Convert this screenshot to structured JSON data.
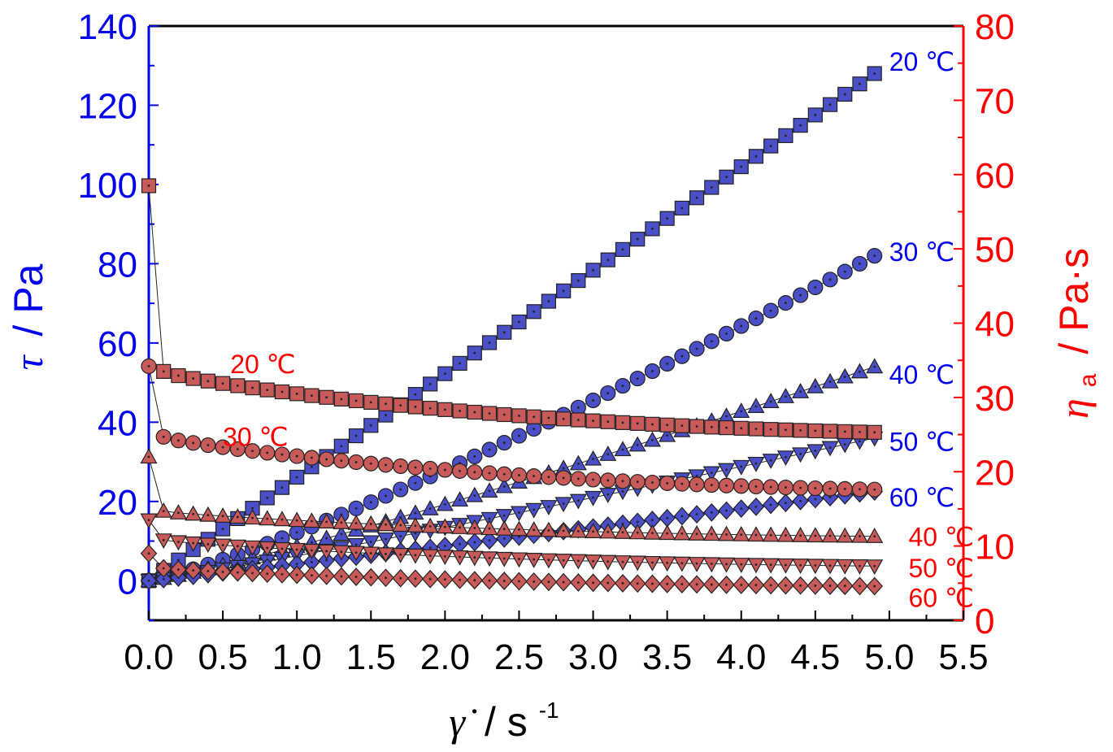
{
  "colors": {
    "left_axis": "#0000ee",
    "right_axis": "#ff0000",
    "blue_fill": "#4a4fc8",
    "red_fill": "#c85a5a",
    "x_axis": "#000000"
  },
  "chart_data": {
    "type": "scatter",
    "title": "",
    "xlabel": {
      "symbol": "γ̇",
      "unit": "/ s",
      "exponent": "-1"
    },
    "ylabel_left": {
      "symbol": "τ",
      "unit": "/ Pa"
    },
    "ylabel_right": {
      "symbol": "η",
      "subscript": "a",
      "unit": "/ Pa·s"
    },
    "xlim": [
      0,
      5.5
    ],
    "ylim_left": [
      -10,
      140
    ],
    "ylim_right": [
      0,
      80
    ],
    "x_ticks": [
      "0.0",
      "0.5",
      "1.0",
      "1.5",
      "2.0",
      "2.5",
      "3.0",
      "3.5",
      "4.0",
      "4.5",
      "5.0",
      "5.5"
    ],
    "y_ticks_left": [
      "0",
      "20",
      "40",
      "60",
      "80",
      "100",
      "120",
      "140"
    ],
    "y_ticks_right": [
      "0",
      "10",
      "20",
      "30",
      "40",
      "50",
      "60",
      "70",
      "80"
    ],
    "grid": false,
    "legend": "none",
    "x_step": 0.1,
    "x_max": 4.9,
    "series": [
      {
        "name": "20 ℃",
        "axis": "left",
        "marker": "square",
        "color": "blue",
        "model": "linear",
        "start": 0,
        "end": 128,
        "pivot": 0.6,
        "curve": 1.0,
        "label_y": 131
      },
      {
        "name": "30 ℃",
        "axis": "left",
        "marker": "circle",
        "color": "blue",
        "model": "power",
        "start": 0,
        "end": 82,
        "curve": 1.2,
        "label_y": 83
      },
      {
        "name": "40 ℃",
        "axis": "left",
        "marker": "triangle-up",
        "color": "blue",
        "model": "power",
        "start": 0,
        "end": 54,
        "curve": 1.15,
        "label_y": 52
      },
      {
        "name": "50 ℃",
        "axis": "left",
        "marker": "triangle-down",
        "color": "blue",
        "model": "power",
        "start": 0,
        "end": 36,
        "curve": 1.1,
        "label_y": 35
      },
      {
        "name": "60 ℃",
        "axis": "left",
        "marker": "diamond",
        "color": "blue",
        "model": "power",
        "start": 0,
        "end": 22.5,
        "curve": 1.05,
        "label_y": 21
      },
      {
        "name": "20 ℃",
        "axis": "right",
        "marker": "square",
        "color": "red",
        "model": "decay",
        "first": 58.5,
        "second": 33.5,
        "end": 25.3,
        "label_x": 0.55,
        "label_y": 34.5
      },
      {
        "name": "30 ℃",
        "axis": "right",
        "marker": "circle",
        "color": "red",
        "model": "decay",
        "first": 34.2,
        "second": 24.7,
        "end": 17.6,
        "label_x": 0.5,
        "label_y": 24.7
      },
      {
        "name": "40 ℃",
        "axis": "right",
        "marker": "triangle-up",
        "color": "red",
        "model": "decay",
        "first": 22.0,
        "second": 14.7,
        "end": 11.3,
        "label_x": 5.35,
        "label_y": 11.2
      },
      {
        "name": "50 ℃",
        "axis": "right",
        "marker": "triangle-down",
        "color": "red",
        "model": "decay",
        "first": 13.5,
        "second": 10.8,
        "end": 7.3,
        "label_x": 5.35,
        "label_y": 7.0
      },
      {
        "name": "60 ℃",
        "axis": "right",
        "marker": "diamond",
        "color": "red",
        "model": "decay",
        "first": 9.0,
        "second": 7.0,
        "end": 4.6,
        "label_x": 5.35,
        "label_y": 3.0
      }
    ]
  }
}
